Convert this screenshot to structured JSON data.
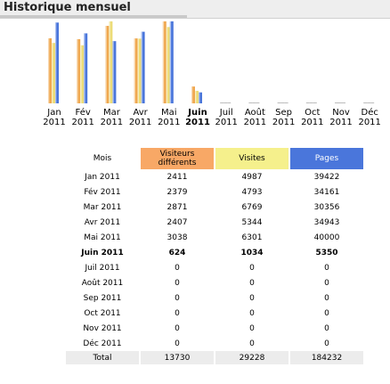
{
  "header": {
    "title": "Historique mensuel"
  },
  "colors": {
    "visitors": "#f0a850",
    "visits": "#ecdc78",
    "pages": "#4a76db"
  },
  "table": {
    "headers": {
      "month": "Mois",
      "visitors": "Visiteurs différents",
      "visits": "Visites",
      "pages": "Pages"
    },
    "rows": [
      {
        "month": "Jan 2011",
        "visitors": "2411",
        "visits": "4987",
        "pages": "39422"
      },
      {
        "month": "Fév 2011",
        "visitors": "2379",
        "visits": "4793",
        "pages": "34161"
      },
      {
        "month": "Mar 2011",
        "visitors": "2871",
        "visits": "6769",
        "pages": "30356"
      },
      {
        "month": "Avr 2011",
        "visitors": "2407",
        "visits": "5344",
        "pages": "34943"
      },
      {
        "month": "Mai 2011",
        "visitors": "3038",
        "visits": "6301",
        "pages": "40000"
      },
      {
        "month": "Juin 2011",
        "visitors": "624",
        "visits": "1034",
        "pages": "5350",
        "bold": true
      },
      {
        "month": "Juil 2011",
        "visitors": "0",
        "visits": "0",
        "pages": "0"
      },
      {
        "month": "Août 2011",
        "visitors": "0",
        "visits": "0",
        "pages": "0"
      },
      {
        "month": "Sep 2011",
        "visitors": "0",
        "visits": "0",
        "pages": "0"
      },
      {
        "month": "Oct 2011",
        "visitors": "0",
        "visits": "0",
        "pages": "0"
      },
      {
        "month": "Nov 2011",
        "visitors": "0",
        "visits": "0",
        "pages": "0"
      },
      {
        "month": "Déc 2011",
        "visitors": "0",
        "visits": "0",
        "pages": "0"
      }
    ],
    "total": {
      "label": "Total",
      "visitors": "13730",
      "visits": "29228",
      "pages": "184232"
    }
  },
  "chart_data": {
    "type": "bar",
    "categories": [
      {
        "month": "Jan",
        "year": "2011"
      },
      {
        "month": "Fév",
        "year": "2011"
      },
      {
        "month": "Mar",
        "year": "2011"
      },
      {
        "month": "Avr",
        "year": "2011"
      },
      {
        "month": "Mai",
        "year": "2011"
      },
      {
        "month": "Juin",
        "year": "2011",
        "bold": true
      },
      {
        "month": "Juil",
        "year": "2011"
      },
      {
        "month": "Août",
        "year": "2011"
      },
      {
        "month": "Sep",
        "year": "2011"
      },
      {
        "month": "Oct",
        "year": "2011"
      },
      {
        "month": "Nov",
        "year": "2011"
      },
      {
        "month": "Déc",
        "year": "2011"
      }
    ],
    "series": [
      {
        "key": "visitors",
        "values": [
          2411,
          2379,
          2871,
          2407,
          3038,
          624,
          0,
          0,
          0,
          0,
          0,
          0
        ]
      },
      {
        "key": "visits",
        "values": [
          4987,
          4793,
          6769,
          5344,
          6301,
          1034,
          0,
          0,
          0,
          0,
          0,
          0
        ]
      },
      {
        "key": "pages",
        "values": [
          39422,
          34161,
          30356,
          34943,
          40000,
          5350,
          0,
          0,
          0,
          0,
          0,
          0
        ]
      }
    ],
    "grid": false,
    "legend": "none"
  }
}
